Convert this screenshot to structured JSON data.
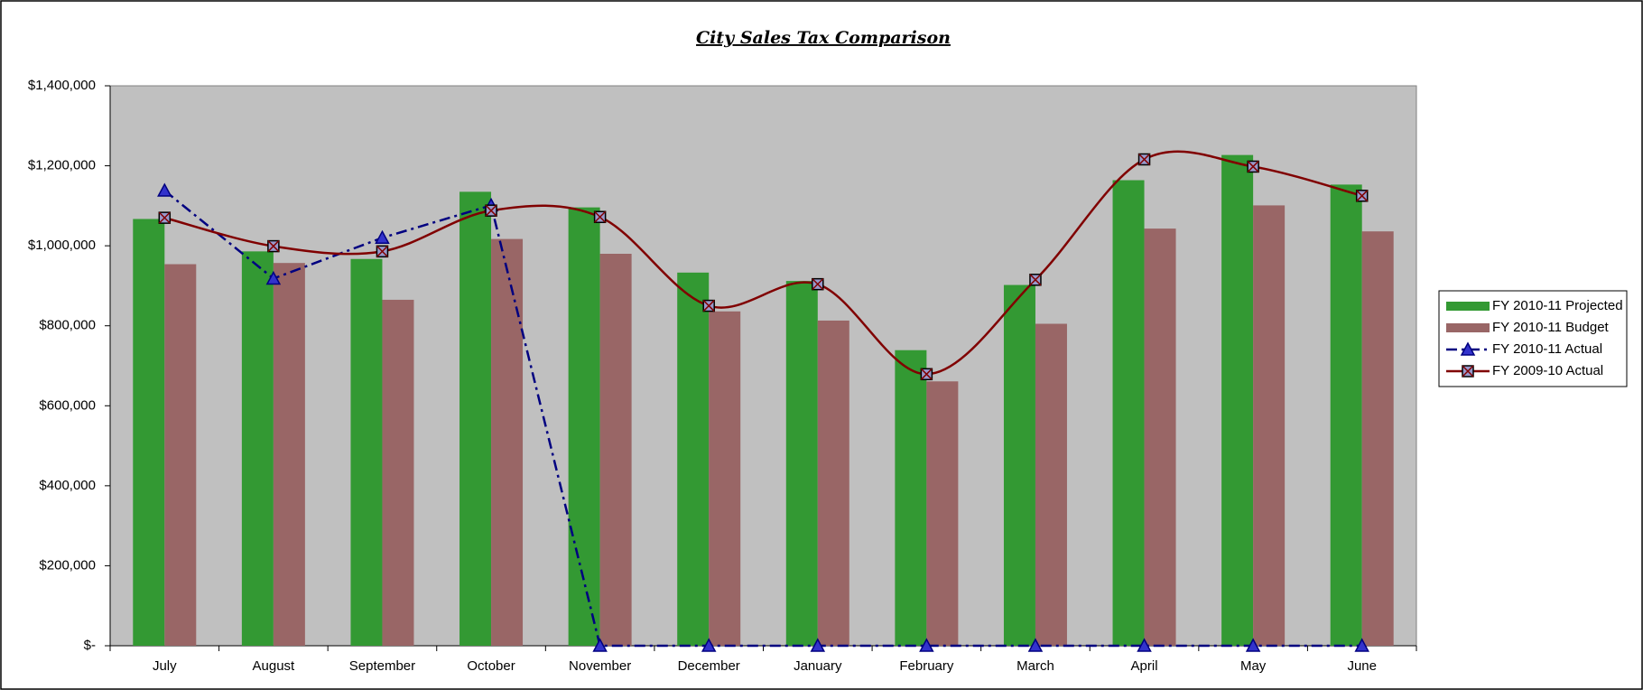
{
  "chart_data": {
    "type": "bar_line",
    "title": "City Sales Tax Comparison",
    "categories": [
      "July",
      "August",
      "September",
      "October",
      "November",
      "December",
      "January",
      "February",
      "March",
      "April",
      "May",
      "June"
    ],
    "series": [
      {
        "name": "FY 2010-11 Projected",
        "type": "bar",
        "color": "#339933",
        "values": [
          1067000,
          986000,
          967000,
          1135000,
          1096000,
          933000,
          912000,
          739000,
          902000,
          1164000,
          1227000,
          1153000
        ]
      },
      {
        "name": "FY 2010-11 Budget",
        "type": "bar",
        "color": "#996666",
        "values": [
          954000,
          957000,
          865000,
          1017000,
          980000,
          836000,
          813000,
          661000,
          805000,
          1043000,
          1101000,
          1036000
        ]
      },
      {
        "name": "FY 2010-11 Actual",
        "type": "line",
        "color": "#000080",
        "marker": "triangle",
        "dash": "dashdot",
        "smooth": false,
        "values": [
          1138000,
          918000,
          1020000,
          1101000,
          0,
          0,
          0,
          0,
          0,
          0,
          0,
          0
        ]
      },
      {
        "name": "FY 2009-10 Actual",
        "type": "line",
        "color": "#800000",
        "marker": "x-square",
        "dash": "solid",
        "smooth": true,
        "values": [
          1070000,
          999000,
          986000,
          1088000,
          1072000,
          850000,
          904000,
          679000,
          915000,
          1216000,
          1198000,
          1125000
        ]
      }
    ],
    "ylim": [
      0,
      1400000
    ],
    "yticks": [
      {
        "value": 0,
        "label": "$-"
      },
      {
        "value": 200000,
        "label": "$200,000"
      },
      {
        "value": 400000,
        "label": "$400,000"
      },
      {
        "value": 600000,
        "label": "$600,000"
      },
      {
        "value": 800000,
        "label": "$800,000"
      },
      {
        "value": 1000000,
        "label": "$1,000,000"
      },
      {
        "value": 1200000,
        "label": "$1,200,000"
      },
      {
        "value": 1400000,
        "label": "$1,400,000"
      }
    ],
    "grid": false,
    "legend": "right",
    "plot_background": "#c0c0c0"
  }
}
